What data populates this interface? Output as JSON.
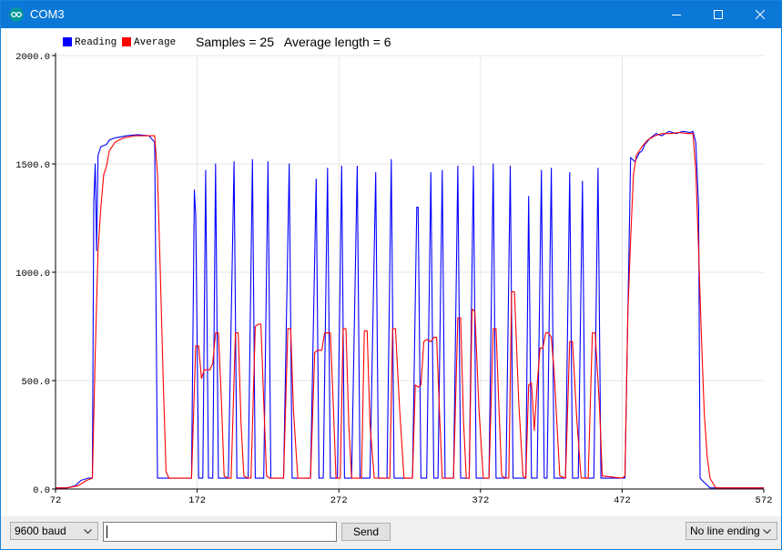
{
  "window": {
    "title": "COM3"
  },
  "plot": {
    "legend": [
      {
        "name": "Reading",
        "color": "#0000ff"
      },
      {
        "name": "Average",
        "color": "#ff0000"
      }
    ],
    "stats_text": "Samples = 25   Average length = 6"
  },
  "chart_data": {
    "type": "line",
    "xlim": [
      72,
      572
    ],
    "ylim": [
      0,
      2000
    ],
    "x_ticks": [
      "72",
      "172",
      "272",
      "372",
      "472",
      "572"
    ],
    "y_ticks": [
      "0.0",
      "500.0",
      "1000.0",
      "1500.0",
      "2000.0"
    ],
    "grid": true,
    "legend_position": "top-left",
    "series": [
      {
        "name": "Reading",
        "color": "#0000ff",
        "points": [
          [
            72,
            5
          ],
          [
            80,
            5
          ],
          [
            86,
            15
          ],
          [
            90,
            40
          ],
          [
            95,
            50
          ],
          [
            98,
            50
          ],
          [
            99,
            1320
          ],
          [
            100,
            1500
          ],
          [
            101,
            1100
          ],
          [
            102,
            1540
          ],
          [
            104,
            1580
          ],
          [
            108,
            1590
          ],
          [
            110,
            1610
          ],
          [
            114,
            1620
          ],
          [
            118,
            1625
          ],
          [
            122,
            1630
          ],
          [
            130,
            1635
          ],
          [
            138,
            1630
          ],
          [
            142,
            1600
          ],
          [
            144,
            50
          ],
          [
            145,
            50
          ],
          [
            168,
            50
          ],
          [
            170,
            1380
          ],
          [
            171,
            1260
          ],
          [
            173,
            50
          ],
          [
            176,
            50
          ],
          [
            178,
            1470
          ],
          [
            180,
            50
          ],
          [
            183,
            50
          ],
          [
            185,
            1500
          ],
          [
            187,
            50
          ],
          [
            194,
            50
          ],
          [
            198,
            1510
          ],
          [
            200,
            50
          ],
          [
            208,
            50
          ],
          [
            211,
            1520
          ],
          [
            213,
            50
          ],
          [
            219,
            50
          ],
          [
            222,
            1510
          ],
          [
            224,
            50
          ],
          [
            233,
            50
          ],
          [
            237,
            1500
          ],
          [
            239,
            50
          ],
          [
            252,
            50
          ],
          [
            256,
            1430
          ],
          [
            258,
            50
          ],
          [
            261,
            50
          ],
          [
            264,
            1480
          ],
          [
            266,
            50
          ],
          [
            271,
            50
          ],
          [
            274,
            1490
          ],
          [
            276,
            50
          ],
          [
            281,
            50
          ],
          [
            285,
            1490
          ],
          [
            287,
            50
          ],
          [
            294,
            50
          ],
          [
            298,
            1460
          ],
          [
            300,
            50
          ],
          [
            306,
            50
          ],
          [
            309,
            1520
          ],
          [
            311,
            50
          ],
          [
            324,
            50
          ],
          [
            327,
            1300
          ],
          [
            328,
            1300
          ],
          [
            330,
            50
          ],
          [
            334,
            50
          ],
          [
            337,
            1460
          ],
          [
            339,
            50
          ],
          [
            342,
            50
          ],
          [
            345,
            1470
          ],
          [
            347,
            50
          ],
          [
            353,
            50
          ],
          [
            356,
            1490
          ],
          [
            358,
            50
          ],
          [
            364,
            50
          ],
          [
            367,
            1490
          ],
          [
            369,
            50
          ],
          [
            378,
            50
          ],
          [
            381,
            1500
          ],
          [
            383,
            50
          ],
          [
            390,
            50
          ],
          [
            393,
            1490
          ],
          [
            395,
            50
          ],
          [
            404,
            50
          ],
          [
            406,
            1350
          ],
          [
            408,
            50
          ],
          [
            412,
            50
          ],
          [
            415,
            1470
          ],
          [
            417,
            50
          ],
          [
            419,
            50
          ],
          [
            422,
            1480
          ],
          [
            424,
            50
          ],
          [
            432,
            50
          ],
          [
            435,
            1460
          ],
          [
            437,
            50
          ],
          [
            441,
            50
          ],
          [
            444,
            1420
          ],
          [
            446,
            50
          ],
          [
            452,
            50
          ],
          [
            455,
            1480
          ],
          [
            457,
            50
          ],
          [
            472,
            50
          ],
          [
            474,
            50
          ],
          [
            478,
            1530
          ],
          [
            481,
            1510
          ],
          [
            484,
            1550
          ],
          [
            486,
            1560
          ],
          [
            488,
            1590
          ],
          [
            492,
            1620
          ],
          [
            496,
            1640
          ],
          [
            500,
            1630
          ],
          [
            505,
            1650
          ],
          [
            510,
            1640
          ],
          [
            515,
            1650
          ],
          [
            520,
            1645
          ],
          [
            522,
            1650
          ],
          [
            524,
            1600
          ],
          [
            526,
            1300
          ],
          [
            527,
            50
          ],
          [
            530,
            30
          ],
          [
            534,
            5
          ],
          [
            560,
            5
          ],
          [
            572,
            5
          ]
        ]
      },
      {
        "name": "Average",
        "color": "#ff0000",
        "points": [
          [
            72,
            5
          ],
          [
            80,
            5
          ],
          [
            88,
            15
          ],
          [
            94,
            40
          ],
          [
            98,
            50
          ],
          [
            100,
            620
          ],
          [
            102,
            1100
          ],
          [
            104,
            1300
          ],
          [
            106,
            1450
          ],
          [
            108,
            1490
          ],
          [
            110,
            1560
          ],
          [
            114,
            1600
          ],
          [
            120,
            1620
          ],
          [
            128,
            1630
          ],
          [
            136,
            1630
          ],
          [
            142,
            1630
          ],
          [
            144,
            1450
          ],
          [
            146,
            1000
          ],
          [
            148,
            500
          ],
          [
            150,
            80
          ],
          [
            152,
            50
          ],
          [
            168,
            50
          ],
          [
            171,
            660
          ],
          [
            173,
            660
          ],
          [
            175,
            510
          ],
          [
            177,
            550
          ],
          [
            181,
            550
          ],
          [
            183,
            580
          ],
          [
            185,
            720
          ],
          [
            187,
            720
          ],
          [
            189,
            420
          ],
          [
            191,
            60
          ],
          [
            194,
            50
          ],
          [
            196,
            50
          ],
          [
            199,
            720
          ],
          [
            201,
            720
          ],
          [
            203,
            300
          ],
          [
            205,
            60
          ],
          [
            208,
            50
          ],
          [
            210,
            50
          ],
          [
            213,
            750
          ],
          [
            215,
            760
          ],
          [
            217,
            760
          ],
          [
            219,
            400
          ],
          [
            221,
            60
          ],
          [
            223,
            50
          ],
          [
            233,
            50
          ],
          [
            236,
            740
          ],
          [
            238,
            740
          ],
          [
            240,
            360
          ],
          [
            243,
            50
          ],
          [
            252,
            50
          ],
          [
            255,
            630
          ],
          [
            257,
            640
          ],
          [
            260,
            640
          ],
          [
            262,
            720
          ],
          [
            266,
            720
          ],
          [
            268,
            400
          ],
          [
            270,
            50
          ],
          [
            273,
            50
          ],
          [
            275,
            740
          ],
          [
            277,
            740
          ],
          [
            279,
            300
          ],
          [
            281,
            50
          ],
          [
            288,
            50
          ],
          [
            290,
            730
          ],
          [
            292,
            730
          ],
          [
            294,
            300
          ],
          [
            297,
            50
          ],
          [
            306,
            50
          ],
          [
            308,
            50
          ],
          [
            310,
            740
          ],
          [
            312,
            740
          ],
          [
            315,
            360
          ],
          [
            318,
            50
          ],
          [
            324,
            50
          ],
          [
            326,
            480
          ],
          [
            328,
            470
          ],
          [
            330,
            480
          ],
          [
            332,
            680
          ],
          [
            334,
            690
          ],
          [
            337,
            680
          ],
          [
            339,
            700
          ],
          [
            341,
            700
          ],
          [
            343,
            360
          ],
          [
            345,
            50
          ],
          [
            353,
            50
          ],
          [
            356,
            790
          ],
          [
            358,
            790
          ],
          [
            360,
            320
          ],
          [
            362,
            50
          ],
          [
            364,
            50
          ],
          [
            366,
            830
          ],
          [
            368,
            820
          ],
          [
            371,
            360
          ],
          [
            374,
            50
          ],
          [
            378,
            50
          ],
          [
            381,
            740
          ],
          [
            383,
            740
          ],
          [
            385,
            380
          ],
          [
            387,
            60
          ],
          [
            390,
            50
          ],
          [
            392,
            50
          ],
          [
            394,
            910
          ],
          [
            396,
            910
          ],
          [
            399,
            400
          ],
          [
            402,
            60
          ],
          [
            404,
            50
          ],
          [
            406,
            480
          ],
          [
            408,
            490
          ],
          [
            410,
            270
          ],
          [
            412,
            480
          ],
          [
            414,
            650
          ],
          [
            416,
            650
          ],
          [
            418,
            720
          ],
          [
            420,
            720
          ],
          [
            422,
            700
          ],
          [
            424,
            540
          ],
          [
            426,
            300
          ],
          [
            428,
            60
          ],
          [
            432,
            50
          ],
          [
            435,
            680
          ],
          [
            437,
            680
          ],
          [
            440,
            320
          ],
          [
            443,
            50
          ],
          [
            448,
            50
          ],
          [
            451,
            720
          ],
          [
            453,
            720
          ],
          [
            456,
            380
          ],
          [
            458,
            60
          ],
          [
            472,
            50
          ],
          [
            474,
            60
          ],
          [
            476,
            800
          ],
          [
            478,
            1150
          ],
          [
            480,
            1450
          ],
          [
            482,
            1540
          ],
          [
            486,
            1580
          ],
          [
            490,
            1610
          ],
          [
            495,
            1630
          ],
          [
            500,
            1640
          ],
          [
            506,
            1640
          ],
          [
            512,
            1645
          ],
          [
            518,
            1640
          ],
          [
            522,
            1640
          ],
          [
            524,
            1470
          ],
          [
            526,
            1100
          ],
          [
            528,
            700
          ],
          [
            530,
            350
          ],
          [
            532,
            150
          ],
          [
            534,
            50
          ],
          [
            538,
            5
          ],
          [
            560,
            5
          ],
          [
            572,
            5
          ]
        ]
      }
    ]
  },
  "controls": {
    "baud": "9600 baud",
    "send_label": "Send",
    "input_value": "",
    "line_ending": "No line ending"
  }
}
